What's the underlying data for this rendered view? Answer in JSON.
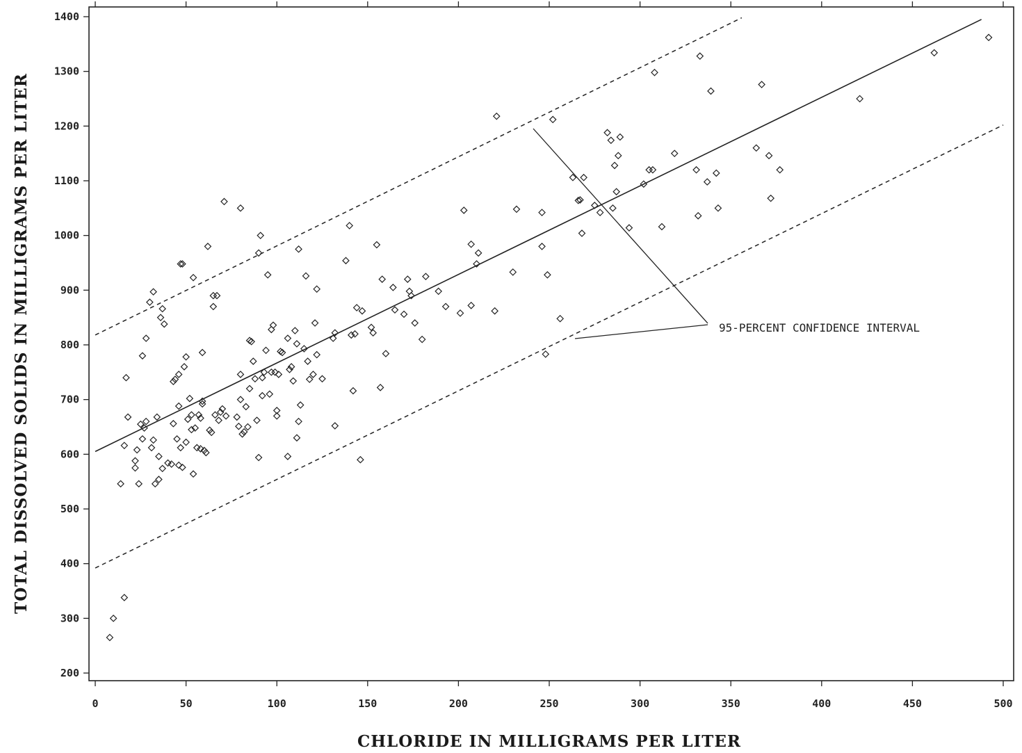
{
  "chart_data": {
    "type": "scatter",
    "title": "",
    "xlabel": "CHLORIDE IN MILLIGRAMS PER LITER",
    "ylabel": "TOTAL DISSOLVED SOLIDS IN MILLIGRAMS PER LITER",
    "xlim": [
      0,
      500
    ],
    "ylim": [
      200,
      1400
    ],
    "x_ticks": [
      0,
      50,
      100,
      150,
      200,
      250,
      300,
      350,
      400,
      450,
      500
    ],
    "y_ticks": [
      200,
      300,
      400,
      500,
      600,
      700,
      800,
      900,
      1000,
      1100,
      1200,
      1300,
      1400
    ],
    "grid": false,
    "regression_line": {
      "x": [
        0,
        488
      ],
      "y": [
        605,
        1395
      ]
    },
    "confidence_upper": {
      "x": [
        0,
        356
      ],
      "y": [
        818,
        1398
      ]
    },
    "confidence_lower": {
      "x": [
        0,
        500
      ],
      "y": [
        392,
        1202
      ]
    },
    "annotation": "95-PERCENT CONFIDENCE INTERVAL",
    "points": [
      [
        8,
        265
      ],
      [
        10,
        300
      ],
      [
        16,
        338
      ],
      [
        14,
        546
      ],
      [
        16,
        616
      ],
      [
        17,
        740
      ],
      [
        18,
        668
      ],
      [
        22,
        588
      ],
      [
        22,
        575
      ],
      [
        23,
        608
      ],
      [
        24,
        546
      ],
      [
        25,
        655
      ],
      [
        26,
        628
      ],
      [
        26,
        780
      ],
      [
        27,
        648
      ],
      [
        28,
        660
      ],
      [
        28,
        812
      ],
      [
        30,
        878
      ],
      [
        31,
        612
      ],
      [
        32,
        897
      ],
      [
        32,
        626
      ],
      [
        33,
        546
      ],
      [
        34,
        668
      ],
      [
        35,
        596
      ],
      [
        35,
        554
      ],
      [
        36,
        850
      ],
      [
        37,
        866
      ],
      [
        37,
        574
      ],
      [
        38,
        838
      ],
      [
        40,
        584
      ],
      [
        42,
        582
      ],
      [
        43,
        656
      ],
      [
        43,
        733
      ],
      [
        44,
        737
      ],
      [
        45,
        628
      ],
      [
        46,
        688
      ],
      [
        46,
        746
      ],
      [
        46,
        580
      ],
      [
        47,
        612
      ],
      [
        47,
        948
      ],
      [
        48,
        948
      ],
      [
        48,
        576
      ],
      [
        49,
        760
      ],
      [
        50,
        778
      ],
      [
        50,
        622
      ],
      [
        51,
        664
      ],
      [
        52,
        702
      ],
      [
        53,
        672
      ],
      [
        53,
        645
      ],
      [
        54,
        564
      ],
      [
        54,
        923
      ],
      [
        55,
        648
      ],
      [
        56,
        612
      ],
      [
        57,
        672
      ],
      [
        58,
        666
      ],
      [
        58,
        610
      ],
      [
        59,
        697
      ],
      [
        59,
        692
      ],
      [
        59,
        786
      ],
      [
        60,
        607
      ],
      [
        61,
        603
      ],
      [
        62,
        980
      ],
      [
        63,
        644
      ],
      [
        64,
        640
      ],
      [
        65,
        890
      ],
      [
        65,
        870
      ],
      [
        66,
        672
      ],
      [
        67,
        890
      ],
      [
        68,
        662
      ],
      [
        69,
        677
      ],
      [
        70,
        683
      ],
      [
        71,
        1062
      ],
      [
        72,
        670
      ],
      [
        78,
        668
      ],
      [
        79,
        651
      ],
      [
        80,
        700
      ],
      [
        80,
        1050
      ],
      [
        80,
        746
      ],
      [
        81,
        637
      ],
      [
        82,
        641
      ],
      [
        83,
        687
      ],
      [
        84,
        650
      ],
      [
        85,
        720
      ],
      [
        85,
        808
      ],
      [
        86,
        806
      ],
      [
        87,
        770
      ],
      [
        88,
        738
      ],
      [
        89,
        662
      ],
      [
        90,
        594
      ],
      [
        90,
        968
      ],
      [
        91,
        1000
      ],
      [
        92,
        707
      ],
      [
        92,
        740
      ],
      [
        93,
        750
      ],
      [
        94,
        790
      ],
      [
        95,
        928
      ],
      [
        96,
        710
      ],
      [
        97,
        750
      ],
      [
        97,
        828
      ],
      [
        98,
        836
      ],
      [
        99,
        750
      ],
      [
        100,
        680
      ],
      [
        100,
        670
      ],
      [
        101,
        746
      ],
      [
        102,
        788
      ],
      [
        103,
        786
      ],
      [
        106,
        596
      ],
      [
        106,
        812
      ],
      [
        107,
        755
      ],
      [
        108,
        760
      ],
      [
        109,
        734
      ],
      [
        110,
        826
      ],
      [
        111,
        630
      ],
      [
        111,
        802
      ],
      [
        112,
        660
      ],
      [
        112,
        975
      ],
      [
        113,
        690
      ],
      [
        115,
        793
      ],
      [
        116,
        926
      ],
      [
        117,
        770
      ],
      [
        118,
        737
      ],
      [
        120,
        746
      ],
      [
        121,
        840
      ],
      [
        122,
        782
      ],
      [
        122,
        902
      ],
      [
        125,
        738
      ],
      [
        131,
        812
      ],
      [
        132,
        822
      ],
      [
        132,
        652
      ],
      [
        138,
        954
      ],
      [
        140,
        1018
      ],
      [
        141,
        818
      ],
      [
        142,
        716
      ],
      [
        143,
        820
      ],
      [
        144,
        868
      ],
      [
        146,
        590
      ],
      [
        147,
        862
      ],
      [
        152,
        832
      ],
      [
        153,
        822
      ],
      [
        155,
        983
      ],
      [
        157,
        722
      ],
      [
        158,
        920
      ],
      [
        160,
        784
      ],
      [
        164,
        905
      ],
      [
        165,
        864
      ],
      [
        170,
        856
      ],
      [
        172,
        920
      ],
      [
        173,
        898
      ],
      [
        174,
        890
      ],
      [
        176,
        840
      ],
      [
        180,
        810
      ],
      [
        182,
        925
      ],
      [
        189,
        898
      ],
      [
        193,
        870
      ],
      [
        201,
        858
      ],
      [
        203,
        1046
      ],
      [
        207,
        984
      ],
      [
        207,
        872
      ],
      [
        210,
        948
      ],
      [
        211,
        968
      ],
      [
        220,
        862
      ],
      [
        221,
        1218
      ],
      [
        230,
        933
      ],
      [
        232,
        1048
      ],
      [
        246,
        980
      ],
      [
        246,
        1042
      ],
      [
        248,
        783
      ],
      [
        249,
        928
      ],
      [
        252,
        1212
      ],
      [
        256,
        848
      ],
      [
        263,
        1106
      ],
      [
        266,
        1064
      ],
      [
        267,
        1065
      ],
      [
        268,
        1004
      ],
      [
        269,
        1106
      ],
      [
        275,
        1055
      ],
      [
        278,
        1042
      ],
      [
        282,
        1188
      ],
      [
        284,
        1174
      ],
      [
        285,
        1050
      ],
      [
        286,
        1128
      ],
      [
        287,
        1080
      ],
      [
        288,
        1146
      ],
      [
        289,
        1180
      ],
      [
        294,
        1014
      ],
      [
        302,
        1094
      ],
      [
        305,
        1120
      ],
      [
        307,
        1120
      ],
      [
        308,
        1298
      ],
      [
        312,
        1016
      ],
      [
        319,
        1150
      ],
      [
        331,
        1120
      ],
      [
        332,
        1036
      ],
      [
        333,
        1328
      ],
      [
        337,
        1098
      ],
      [
        339,
        1264
      ],
      [
        342,
        1114
      ],
      [
        343,
        1050
      ],
      [
        364,
        1160
      ],
      [
        367,
        1276
      ],
      [
        371,
        1146
      ],
      [
        372,
        1068
      ],
      [
        377,
        1120
      ],
      [
        421,
        1250
      ],
      [
        462,
        1334
      ],
      [
        492,
        1362
      ]
    ]
  }
}
